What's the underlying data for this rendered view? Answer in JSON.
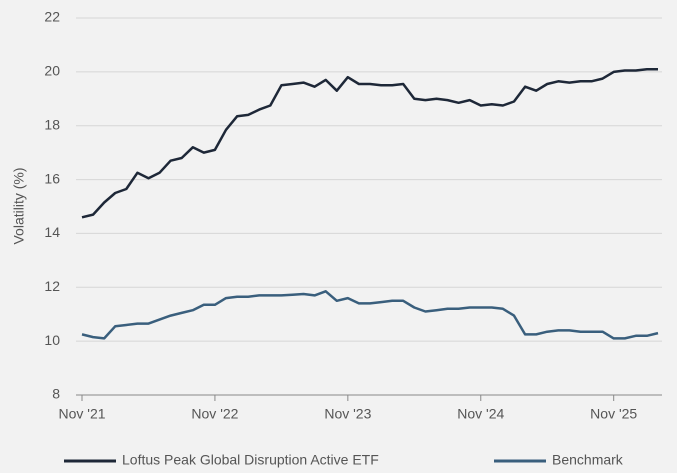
{
  "chart_data": {
    "type": "line",
    "ylabel": "Volatility (%)",
    "categories": [
      "Nov '21",
      null,
      null,
      null,
      null,
      null,
      null,
      null,
      null,
      null,
      null,
      null,
      "Nov '22",
      null,
      null,
      null,
      null,
      null,
      null,
      null,
      null,
      null,
      null,
      null,
      "Nov '23",
      null,
      null,
      null,
      null,
      null,
      null,
      null,
      null,
      null,
      null,
      null,
      "Nov '24",
      null,
      null,
      null,
      null,
      null,
      null,
      null,
      null,
      null,
      null,
      null,
      "Nov '25",
      null,
      null,
      null,
      null
    ],
    "series": [
      {
        "name": "Loftus Peak Global Disruption Active ETF",
        "color": "#1e2838",
        "values": [
          14.6,
          14.7,
          15.15,
          15.5,
          15.65,
          16.25,
          16.05,
          16.25,
          16.7,
          16.8,
          17.2,
          17.0,
          17.1,
          17.85,
          18.35,
          18.4,
          18.6,
          18.75,
          19.5,
          19.55,
          19.6,
          19.45,
          19.7,
          19.3,
          19.8,
          19.55,
          19.55,
          19.5,
          19.5,
          19.55,
          19.0,
          18.95,
          19.0,
          18.95,
          18.85,
          18.95,
          18.75,
          18.8,
          18.75,
          18.9,
          19.45,
          19.3,
          19.55,
          19.65,
          19.6,
          19.65,
          19.65,
          19.75,
          20.0,
          20.05,
          20.05,
          20.1,
          20.1
        ]
      },
      {
        "name": "Benchmark",
        "color": "#3a5f7d",
        "values": [
          10.25,
          10.15,
          10.1,
          10.55,
          10.6,
          10.65,
          10.65,
          10.8,
          10.95,
          11.05,
          11.15,
          11.35,
          11.35,
          11.6,
          11.65,
          11.65,
          11.7,
          11.7,
          11.7,
          11.72,
          11.75,
          11.7,
          11.85,
          11.5,
          11.6,
          11.4,
          11.4,
          11.45,
          11.5,
          11.5,
          11.25,
          11.1,
          11.15,
          11.2,
          11.2,
          11.25,
          11.25,
          11.25,
          11.2,
          10.95,
          10.25,
          10.25,
          10.35,
          10.4,
          10.4,
          10.35,
          10.35,
          10.35,
          10.1,
          10.1,
          10.2,
          10.2,
          10.3
        ]
      }
    ],
    "ylim": [
      8,
      22
    ],
    "yticks": [
      8,
      10,
      12,
      14,
      16,
      18,
      20,
      22
    ],
    "grid": true
  }
}
